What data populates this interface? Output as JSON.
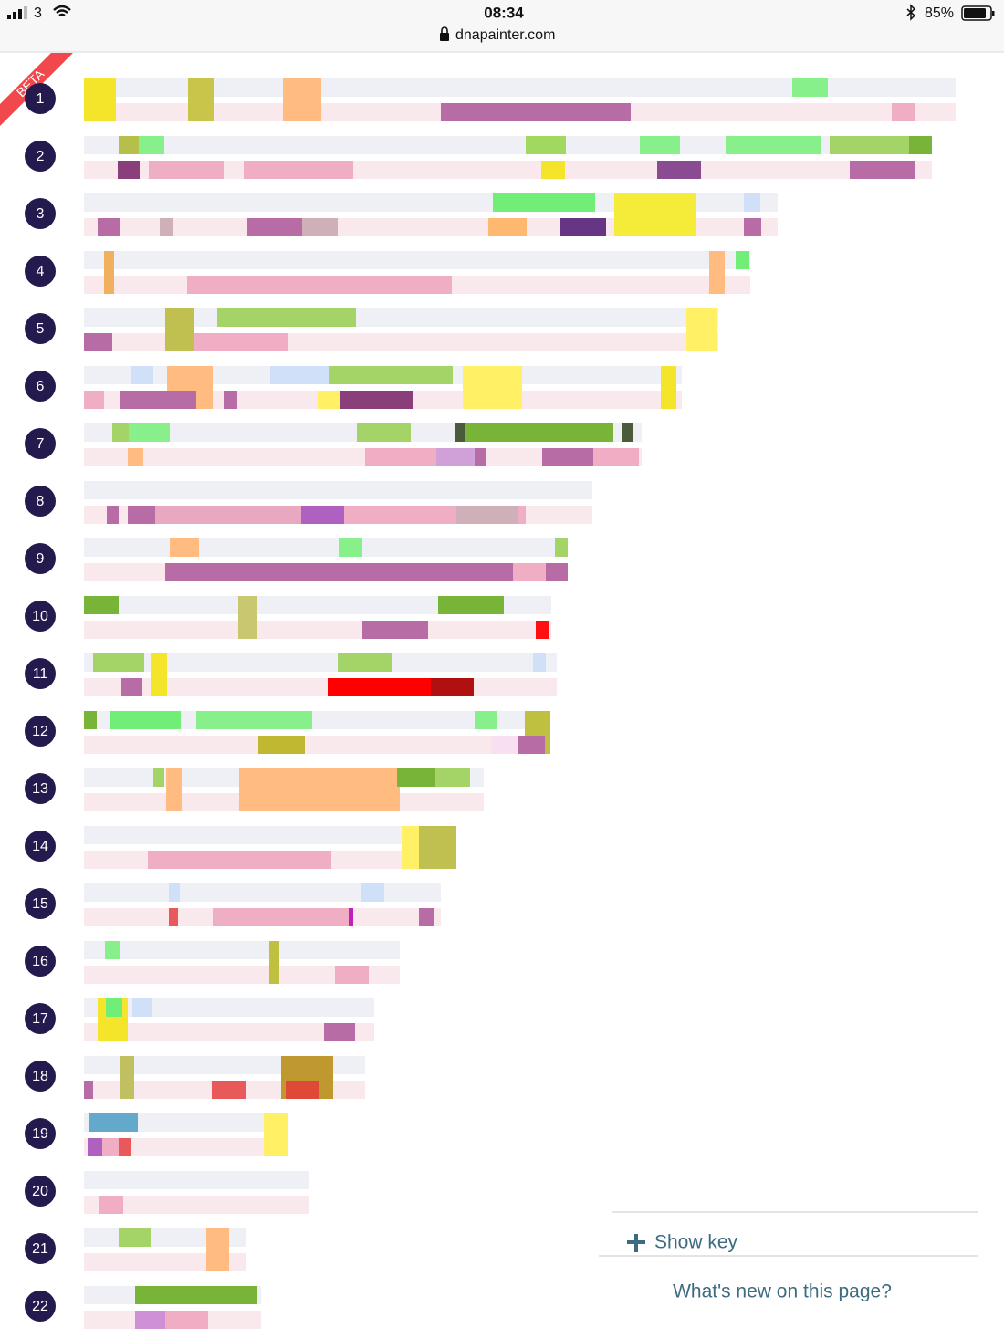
{
  "status_bar": {
    "carrier": "3",
    "time": "08:34",
    "url": "dnapainter.com",
    "battery": "85%"
  },
  "badge": "BETA",
  "chromosomes": [
    "1",
    "2",
    "3",
    "4",
    "5",
    "6",
    "7",
    "8",
    "9",
    "10",
    "11",
    "12",
    "13",
    "14",
    "15",
    "16",
    "17",
    "18",
    "19",
    "20",
    "21",
    "22"
  ],
  "key_panel": {
    "show_key": "Show key",
    "whats_new": "What's new on this page?"
  }
}
